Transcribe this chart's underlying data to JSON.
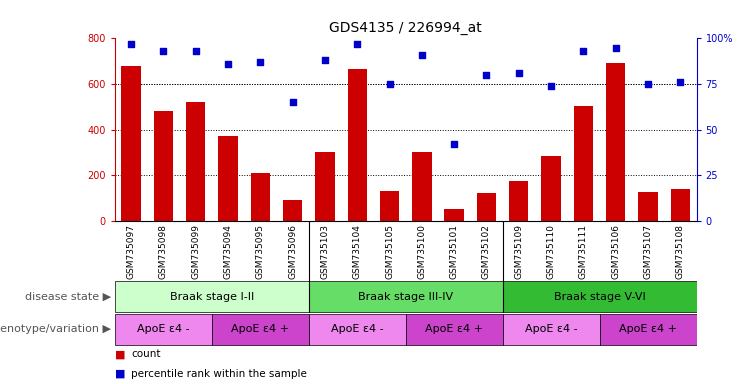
{
  "title": "GDS4135 / 226994_at",
  "samples": [
    "GSM735097",
    "GSM735098",
    "GSM735099",
    "GSM735094",
    "GSM735095",
    "GSM735096",
    "GSM735103",
    "GSM735104",
    "GSM735105",
    "GSM735100",
    "GSM735101",
    "GSM735102",
    "GSM735109",
    "GSM735110",
    "GSM735111",
    "GSM735106",
    "GSM735107",
    "GSM735108"
  ],
  "counts": [
    680,
    480,
    520,
    370,
    210,
    90,
    300,
    665,
    130,
    300,
    50,
    120,
    175,
    285,
    505,
    690,
    125,
    140
  ],
  "percentiles": [
    97,
    93,
    93,
    86,
    87,
    65,
    88,
    97,
    75,
    91,
    42,
    80,
    81,
    74,
    93,
    95,
    75,
    76
  ],
  "ylim_left": [
    0,
    800
  ],
  "ylim_right": [
    0,
    100
  ],
  "yticks_left": [
    0,
    200,
    400,
    600,
    800
  ],
  "yticks_right": [
    0,
    25,
    50,
    75,
    100
  ],
  "bar_color": "#cc0000",
  "dot_color": "#0000cc",
  "disease_state_groups": [
    {
      "label": "Braak stage I-II",
      "start": 0,
      "end": 6,
      "color": "#ccffcc"
    },
    {
      "label": "Braak stage III-IV",
      "start": 6,
      "end": 12,
      "color": "#66dd66"
    },
    {
      "label": "Braak stage V-VI",
      "start": 12,
      "end": 18,
      "color": "#33bb33"
    }
  ],
  "genotype_groups": [
    {
      "label": "ApoE ε4 -",
      "start": 0,
      "end": 3,
      "color": "#ee88ee"
    },
    {
      "label": "ApoE ε4 +",
      "start": 3,
      "end": 6,
      "color": "#cc44cc"
    },
    {
      "label": "ApoE ε4 -",
      "start": 6,
      "end": 9,
      "color": "#ee88ee"
    },
    {
      "label": "ApoE ε4 +",
      "start": 9,
      "end": 12,
      "color": "#cc44cc"
    },
    {
      "label": "ApoE ε4 -",
      "start": 12,
      "end": 15,
      "color": "#ee88ee"
    },
    {
      "label": "ApoE ε4 +",
      "start": 15,
      "end": 18,
      "color": "#cc44cc"
    }
  ],
  "label_disease_state": "disease state",
  "label_genotype": "genotype/variation",
  "legend_count": "count",
  "legend_percentile": "percentile rank within the sample",
  "background_color": "#ffffff",
  "xtick_bg": "#cccccc"
}
